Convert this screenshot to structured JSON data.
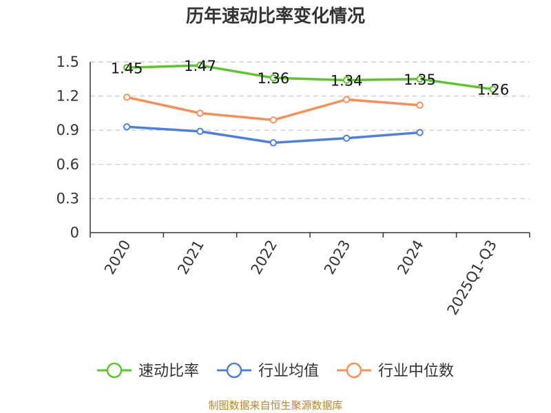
{
  "chart_data": {
    "type": "line",
    "title": "历年速动比率变化情况",
    "categories": [
      "2020",
      "2021",
      "2022",
      "2023",
      "2024",
      "2025Q1-Q3"
    ],
    "yticks": [
      "0",
      "0.3",
      "0.6",
      "0.9",
      "1.2",
      "1.5"
    ],
    "ylim": [
      0,
      1.5
    ],
    "grid": true,
    "legend_position": "bottom",
    "series": [
      {
        "name": "速动比率",
        "color": "#5bc52b",
        "values": [
          1.45,
          1.47,
          1.36,
          1.34,
          1.35,
          1.26
        ],
        "labels": [
          "1.45",
          "1.47",
          "1.36",
          "1.34",
          "1.35",
          "1.26"
        ]
      },
      {
        "name": "行业均值",
        "color": "#4e7fdc",
        "values": [
          0.93,
          0.89,
          0.79,
          0.83,
          0.88,
          null
        ]
      },
      {
        "name": "行业中位数",
        "color": "#f78f59",
        "values": [
          1.19,
          1.05,
          0.99,
          1.17,
          1.12,
          null
        ]
      }
    ],
    "source": "制图数据来自恒生聚源数据库"
  }
}
